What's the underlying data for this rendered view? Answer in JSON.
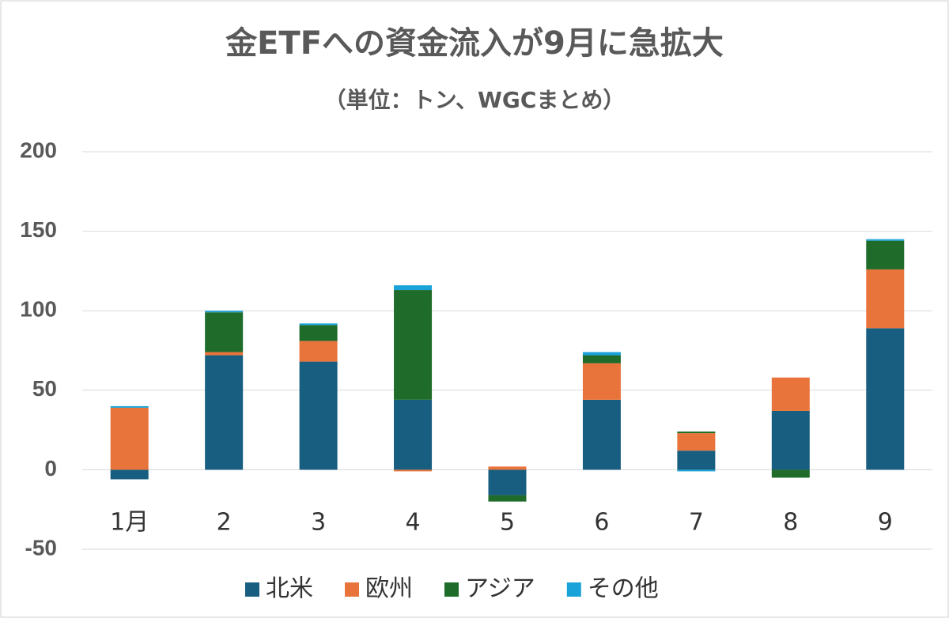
{
  "chart_data": {
    "type": "stacked_bar",
    "title": "金ETFへの資金流入が9月に急拡大",
    "subtitle": "（単位：トン、WGCまとめ）",
    "categories": [
      "1月",
      "2",
      "3",
      "4",
      "5",
      "6",
      "7",
      "8",
      "9"
    ],
    "series": [
      {
        "name": "北米",
        "color": "#175e80",
        "values": [
          -6,
          72,
          68,
          44,
          -16,
          44,
          12,
          37,
          89
        ]
      },
      {
        "name": "欧州",
        "color": "#e8743b",
        "values": [
          39,
          2,
          13,
          -1,
          2,
          23,
          11,
          21,
          37
        ]
      },
      {
        "name": "アジア",
        "color": "#1e6b2a",
        "values": [
          0,
          25,
          10,
          69,
          -4,
          5,
          1,
          -5,
          18
        ]
      },
      {
        "name": "その他",
        "color": "#1aa3d9",
        "values": [
          1,
          1,
          1,
          3,
          0,
          2,
          -1,
          0,
          1
        ]
      }
    ],
    "ylim": [
      -50,
      200
    ],
    "yticks": [
      -50,
      0,
      50,
      100,
      150,
      200
    ],
    "grid": true,
    "legend": "bottom"
  }
}
